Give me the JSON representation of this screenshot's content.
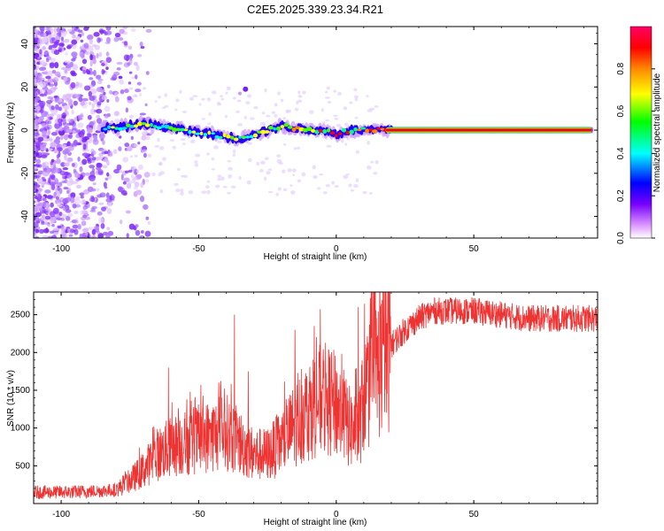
{
  "title": "C2E5.2025.339.23.34.R21",
  "chart_data": [
    {
      "type": "heatmap",
      "xlabel": "Height of straight line (km)",
      "ylabel": "Frequency (Hz)",
      "xlim": [
        -110,
        95
      ],
      "ylim": [
        -50,
        48
      ],
      "xticks": [
        -100,
        -50,
        0,
        50
      ],
      "yticks": [
        -40,
        -20,
        0,
        20,
        40
      ],
      "colorbar": {
        "label": "Normalized spectral amplitude",
        "range": [
          0.0,
          1.0
        ],
        "ticks": [
          "0.0",
          "0.2",
          "0.4",
          "0.6",
          "0.8"
        ],
        "colors": [
          "#ffffff",
          "#cc99ff",
          "#7700ff",
          "#0000ff",
          "#00ffff",
          "#00ff00",
          "#ffff00",
          "#ff8800",
          "#ff0000",
          "#ff0066"
        ]
      },
      "ridge": {
        "description": "signal ridge frequency vs height",
        "x": [
          -85,
          -80,
          -75,
          -70,
          -65,
          -60,
          -55,
          -50,
          -45,
          -40,
          -35,
          -30,
          -25,
          -20,
          -15,
          -10,
          -5,
          0,
          5,
          10,
          20,
          40,
          60,
          80,
          93
        ],
        "y": [
          1,
          1,
          2,
          3,
          2,
          1,
          0,
          -1,
          -2,
          -3,
          -4,
          -2,
          0,
          2,
          1,
          0,
          0,
          -2,
          0,
          0,
          0,
          0,
          0,
          0,
          0
        ]
      }
    },
    {
      "type": "line",
      "xlabel": "Height of straight line (km)",
      "ylabel": "SNR (10 * v/v)",
      "xlim": [
        -110,
        95
      ],
      "ylim": [
        0,
        2800
      ],
      "xticks": [
        -100,
        -50,
        0,
        50
      ],
      "yticks": [
        500,
        1000,
        1500,
        2000,
        2500
      ],
      "color": "#ee3333",
      "series": [
        {
          "name": "SNR",
          "x": [
            -110,
            -100,
            -90,
            -80,
            -75,
            -70,
            -65,
            -60,
            -55,
            -50,
            -45,
            -40,
            -35,
            -30,
            -25,
            -20,
            -15,
            -10,
            -5,
            0,
            5,
            8,
            10,
            15,
            20,
            25,
            30,
            35,
            40,
            50,
            60,
            70,
            80,
            93
          ],
          "y": [
            150,
            150,
            160,
            180,
            300,
            450,
            650,
            750,
            800,
            850,
            900,
            950,
            800,
            650,
            650,
            800,
            1050,
            1250,
            1400,
            1300,
            1000,
            950,
            1400,
            1800,
            2100,
            2300,
            2450,
            2550,
            2550,
            2550,
            2500,
            2450,
            2450,
            2450
          ],
          "spikes": [
            {
              "x": -61,
              "y": 1800
            },
            {
              "x": -37,
              "y": 2500
            },
            {
              "x": -32,
              "y": 1750
            },
            {
              "x": -15,
              "y": 2300
            },
            {
              "x": -8,
              "y": 2350
            },
            {
              "x": 8,
              "y": 2600
            }
          ]
        }
      ]
    }
  ]
}
